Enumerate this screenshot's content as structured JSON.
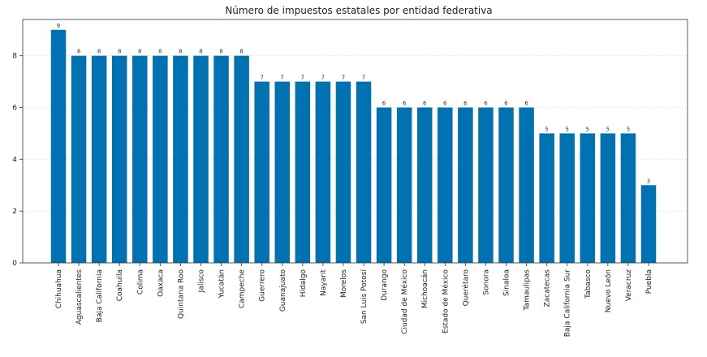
{
  "chart_data": {
    "type": "bar",
    "title": "Número de impuestos estatales por entidad federativa",
    "xlabel": "",
    "ylabel": "",
    "ylim": [
      0,
      9.4
    ],
    "yticks": [
      0,
      2,
      4,
      6,
      8
    ],
    "grid": "y",
    "bar_color": "#0072b2",
    "categories": [
      "Chihuahua",
      "Aguascalientes",
      "Baja California",
      "Coahuila",
      "Colima",
      "Oaxaca",
      "Quintana Roo",
      "Jalisco",
      "Yucatán",
      "Campeche",
      "Guerrero",
      "Guanajuato",
      "Hidalgo",
      "Nayarit",
      "Morelos",
      "San Luis Potosí",
      "Durango",
      "Ciudad de México",
      "Michoacán",
      "Estado de México",
      "Querétaro",
      "Sonora",
      "Sinaloa",
      "Tamaulipas",
      "Zacatecas",
      "Baja California Sur",
      "Tabasco",
      "Nuevo León",
      "Veracruz",
      "Puebla"
    ],
    "values": [
      9,
      8,
      8,
      8,
      8,
      8,
      8,
      8,
      8,
      8,
      7,
      7,
      7,
      7,
      7,
      7,
      6,
      6,
      6,
      6,
      6,
      6,
      6,
      6,
      5,
      5,
      5,
      5,
      5,
      3
    ]
  }
}
